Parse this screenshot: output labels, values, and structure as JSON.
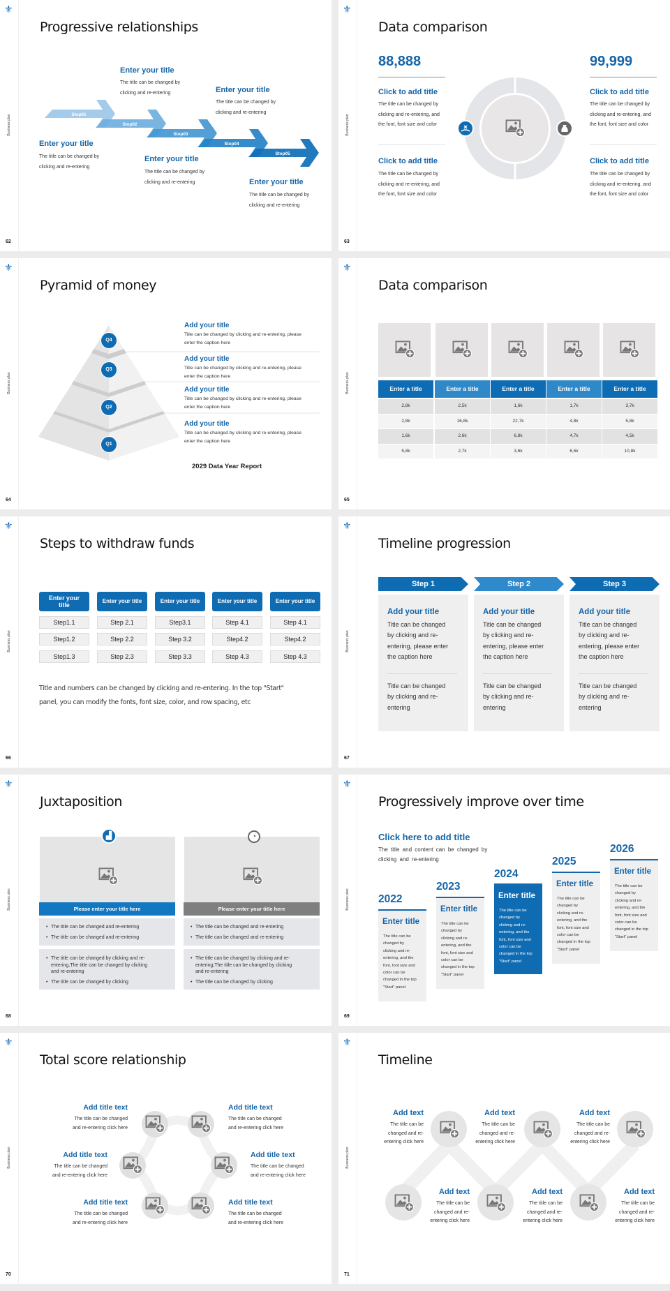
{
  "common": {
    "side_label": "Business plan",
    "brand_color": "#0f6cb3",
    "logo_icon": "fleur-de-lis-icon"
  },
  "s62": {
    "page": "62",
    "title": "Progressive relationships",
    "steps": [
      "Step01",
      "Step02",
      "Step03",
      "Step04",
      "Step05"
    ],
    "blocks": [
      {
        "title": "Enter your title",
        "desc": "The title can be changed by\nclicking and re-entering"
      },
      {
        "title": "Enter your title",
        "desc": "The title can be changed by\nclicking and re-entering"
      },
      {
        "title": "Enter your title",
        "desc": "The title can be changed by\nclicking and re-entering"
      },
      {
        "title": "Enter your title",
        "desc": "The title can be changed by\nclicking and re-entering"
      },
      {
        "title": "Enter your title",
        "desc": "The title can be changed by\nclicking and re-entering"
      }
    ]
  },
  "s63": {
    "page": "63",
    "title": "Data comparison",
    "left_value": "88,888",
    "right_value": "99,999",
    "items": [
      {
        "title": "Click to add title",
        "desc": "The title can be changed by\nclicking and re-entering, and\nthe font, font size and color"
      },
      {
        "title": "Click to add title",
        "desc": "The title can be changed by\nclicking and re-entering, and\nthe font, font size and color"
      },
      {
        "title": "Click to add title",
        "desc": "The title can be changed by\nclicking and re-entering, and\nthe font, font size and color"
      },
      {
        "title": "Click to add title",
        "desc": "The title can be changed by\nclicking and re-entering, and\nthe font, font size and color"
      }
    ],
    "left_icon": "hand-money-icon",
    "right_icon": "money-bag-icon"
  },
  "s64": {
    "page": "64",
    "title": "Pyramid of money",
    "levels": [
      "Q4",
      "Q3",
      "Q2",
      "Q1"
    ],
    "items": [
      {
        "title": "Add your title",
        "desc": "Title can be changed by clicking and re-entering, please\nenter the caption here"
      },
      {
        "title": "Add your title",
        "desc": "Title can be changed by clicking and re-entering, please\nenter the caption here"
      },
      {
        "title": "Add your title",
        "desc": "Title can be changed by clicking and re-entering, please\nenter the caption here"
      },
      {
        "title": "Add your title",
        "desc": "Title can be changed by clicking and re-entering, please\nenter the caption here"
      }
    ],
    "report": "2029 Data Year Report"
  },
  "s65": {
    "page": "65",
    "title": "Data comparison",
    "headers": [
      "Enter a title",
      "Enter a title",
      "Enter a title",
      "Enter a title",
      "Enter a title"
    ],
    "rows": [
      [
        "2,8k",
        "2,5k",
        "1,6k",
        "1,7k",
        "3,7k"
      ],
      [
        "2,8k",
        "16,8k",
        "22,7k",
        "4,8k",
        "5,8k"
      ],
      [
        "1,6k",
        "2,6k",
        "6,8k",
        "4,7k",
        "4,5k"
      ],
      [
        "5,8k",
        "2,7k",
        "3,6k",
        "6,5k",
        "10,8k"
      ]
    ]
  },
  "s66": {
    "page": "66",
    "title": "Steps to withdraw funds",
    "columns": [
      {
        "head": "Enter your title",
        "steps": [
          "Step1.1",
          "Step1.2",
          "Step1.3"
        ]
      },
      {
        "head": "Enter your title",
        "steps": [
          "Step 2.1",
          "Step 2.2",
          "Step 2.3"
        ]
      },
      {
        "head": "Enter your title",
        "steps": [
          "Step3.1",
          "Step 3.2",
          "Step 3.3"
        ]
      },
      {
        "head": "Enter your title",
        "steps": [
          "Step 4.1",
          "Step4.2",
          "Step 4.3"
        ]
      },
      {
        "head": "Enter your title",
        "steps": [
          "Step 4.1",
          "Step4.2",
          "Step 4.3"
        ]
      }
    ],
    "note": "Title and numbers can be changed by clicking and re-entering. In the top \"Start\"\npanel, you can modify the fonts, font size, color, and row spacing, etc"
  },
  "s67": {
    "page": "67",
    "title": "Timeline progression",
    "steps": [
      {
        "label": "Step 1",
        "title": "Add your title",
        "body": "Title can be changed\nby clicking and re-\nentering, please enter\nthe caption here",
        "body2": "Title can be changed\nby clicking and re-\nentering"
      },
      {
        "label": "Step 2",
        "title": "Add your title",
        "body": "Title can be changed\nby clicking and re-\nentering, please enter\nthe caption here",
        "body2": "Title can be changed\nby clicking and re-\nentering"
      },
      {
        "label": "Step 3",
        "title": "Add your title",
        "body": "Title can be changed\nby clicking and re-\nentering, please enter\nthe caption here",
        "body2": "Title can be changed\nby clicking and re-\nentering"
      }
    ]
  },
  "s68": {
    "page": "68",
    "title": "Juxtaposition",
    "panels": [
      {
        "icon": "bar-chart-icon",
        "bar": "Please enter your title here",
        "b1": [
          "The title can be changed and re-entering",
          "The title can be changed and re-entering"
        ],
        "b2": [
          "The title can be changed by clicking and re-\nentering,The title can be changed by clicking\nand re-entering",
          "The title can be changed by clicking"
        ]
      },
      {
        "icon": "clock-icon",
        "bar": "Please enter your title here",
        "b1": [
          "The title can be changed and re-entering",
          "The title can be changed and re-entering"
        ],
        "b2": [
          "The title can be changed by clicking and re-\nentering,The title can be changed by clicking\nand re-entering",
          "The title can be changed by clicking"
        ]
      }
    ]
  },
  "s69": {
    "page": "69",
    "title": "Progressively improve over time",
    "heading": "Click here to add title",
    "sub": "The title and content can be changed by\nclicking and re-entering",
    "years": [
      {
        "year": "2022",
        "title": "Enter title",
        "body": "The title can be\nchanged by\nclicking and re-\nentering, and the\nfont, font size and\ncolor can be\nchanged in the top\n\"Start\" panel"
      },
      {
        "year": "2023",
        "title": "Enter title",
        "body": "The title can be\nchanged by\nclicking and re-\nentering, and the\nfont, font size and\ncolor can be\nchanged in the top\n\"Start\" panel"
      },
      {
        "year": "2024",
        "title": "Enter title",
        "body": "The title can be\nchanged by\nclicking and re-\nentering, and the\nfont, font size and\ncolor can be\nchanged in the top\n\"Start\" panel"
      },
      {
        "year": "2025",
        "title": "Enter title",
        "body": "The title can be\nchanged by\nclicking and re-\nentering, and the\nfont, font size and\ncolor can be\nchanged in the top\n\"Start\" panel"
      },
      {
        "year": "2026",
        "title": "Enter title",
        "body": "The title can be\nchanged by\nclicking and re-\nentering, and the\nfont, font size and\ncolor can be\nchanged in the top\n\"Start\" panel"
      }
    ],
    "highlight_year": "2024"
  },
  "s70": {
    "page": "70",
    "title": "Total score relationship",
    "items": [
      {
        "title": "Add title text",
        "desc": "The title can be changed\nand re-entering click here"
      },
      {
        "title": "Add title text",
        "desc": "The title can be changed\nand re-entering click here"
      },
      {
        "title": "Add title text",
        "desc": "The title can be changed\nand re-entering click here"
      },
      {
        "title": "Add title text",
        "desc": "The title can be changed\nand re-entering click here"
      },
      {
        "title": "Add title text",
        "desc": "The title can be changed\nand re-entering click here"
      },
      {
        "title": "Add title text",
        "desc": "The title can be changed\nand re-entering click here"
      }
    ]
  },
  "s71": {
    "page": "71",
    "title": "Timeline",
    "items": [
      {
        "title": "Add text",
        "desc": "The title can be\nchanged and re-\nentering click here"
      },
      {
        "title": "Add text",
        "desc": "The title can be\nchanged and re-\nentering click here"
      },
      {
        "title": "Add text",
        "desc": "The title can be\nchanged and re-\nentering click here"
      },
      {
        "title": "Add text",
        "desc": "The title can be\nchanged and re-\nentering click here"
      },
      {
        "title": "Add text",
        "desc": "The title can be\nchanged and re-\nentering click here"
      },
      {
        "title": "Add text",
        "desc": "The title can be\nchanged and re-\nentering click here"
      }
    ]
  }
}
